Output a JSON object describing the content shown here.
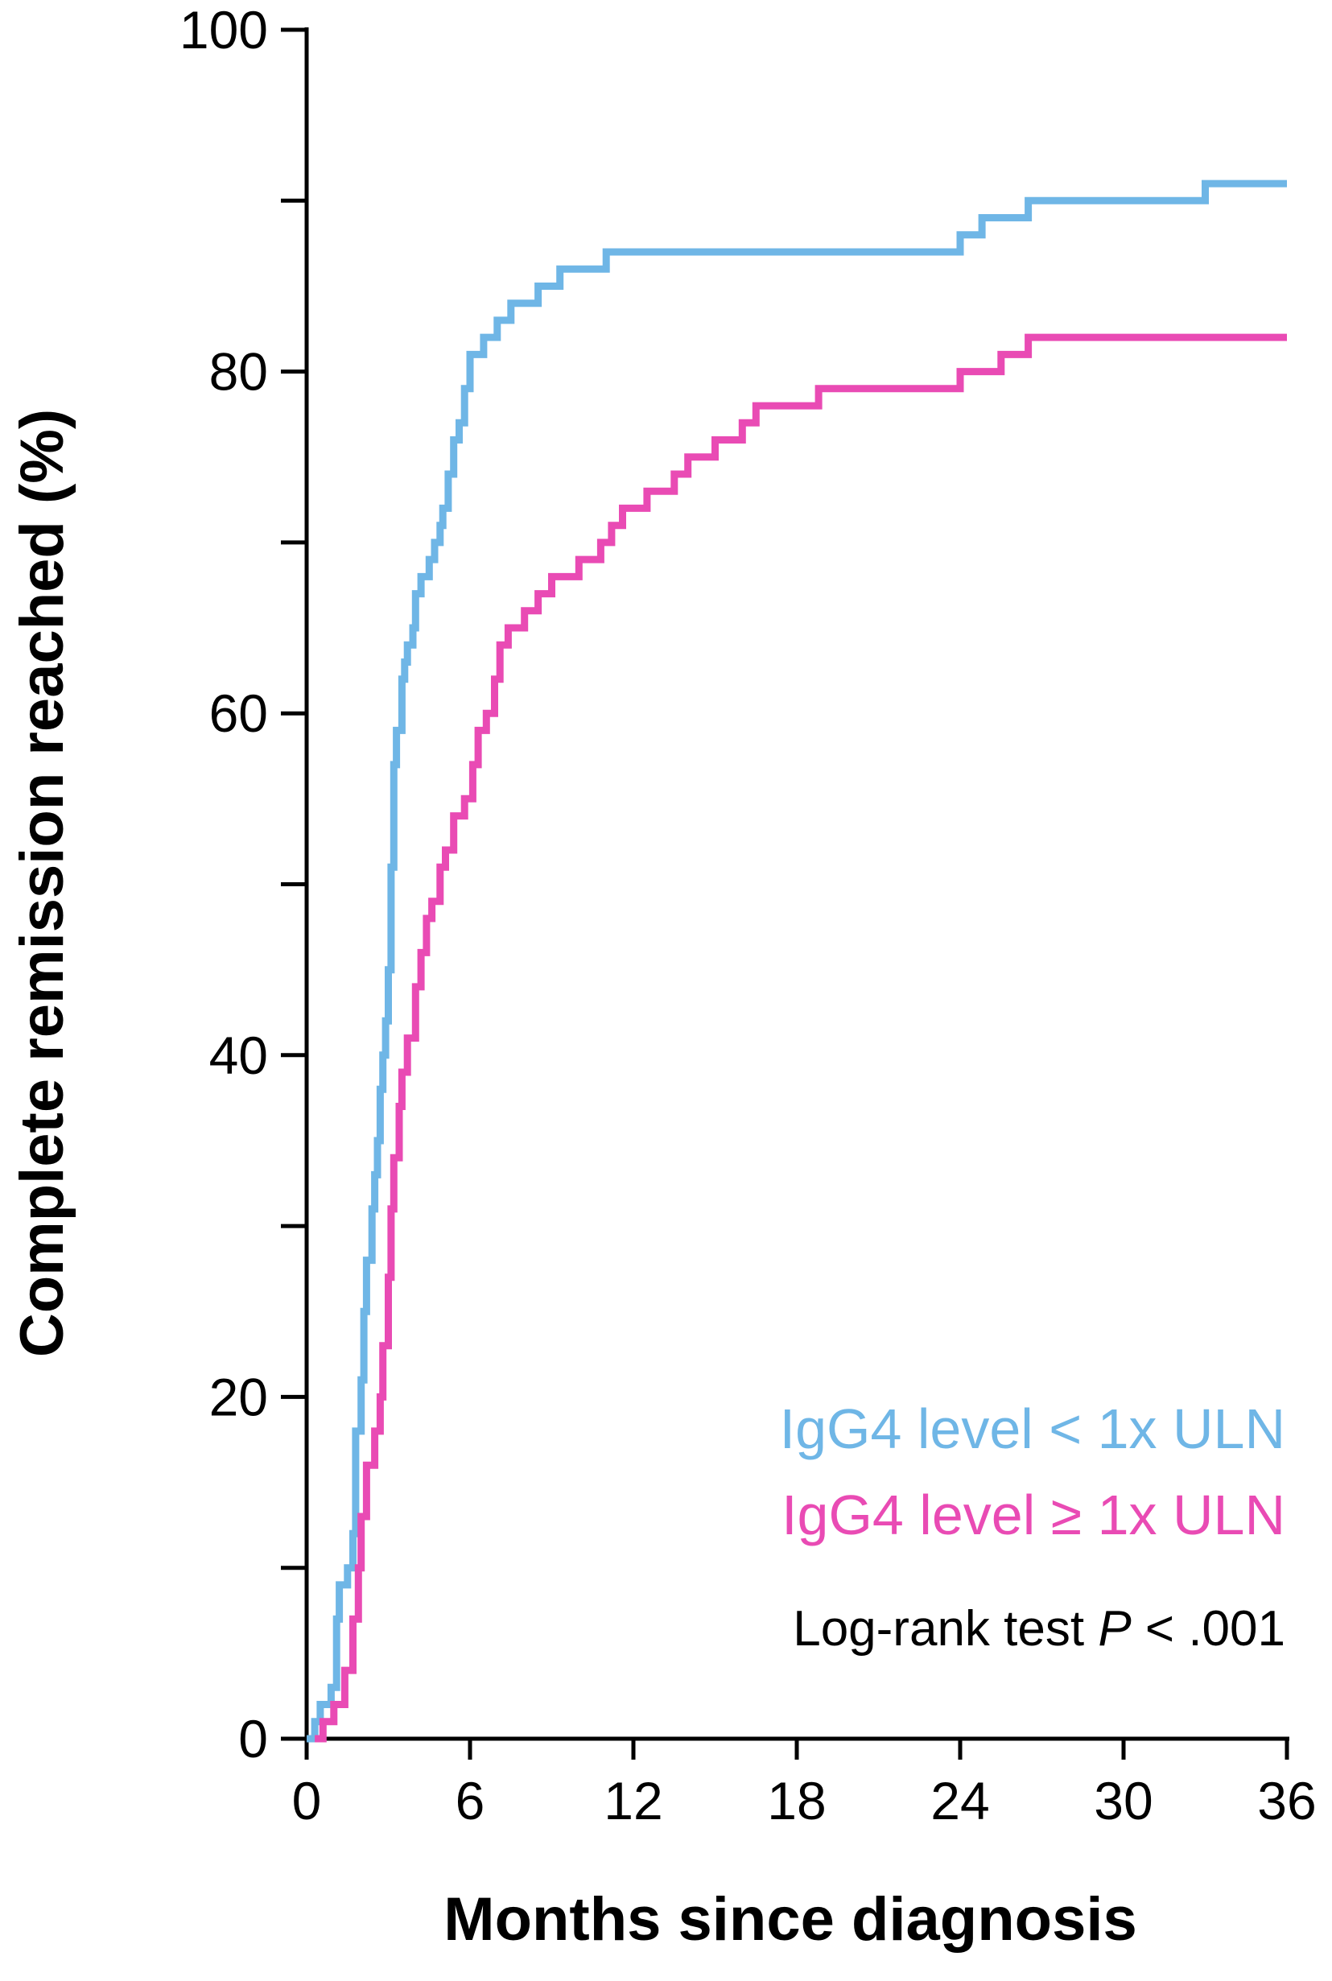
{
  "chart_data": {
    "type": "line",
    "step": true,
    "xlabel": "Months since diagnosis",
    "ylabel": "Complete remission reached (%)",
    "xlim": [
      0,
      36
    ],
    "ylim": [
      0,
      100
    ],
    "xticks": [
      0,
      6,
      12,
      18,
      24,
      30,
      36
    ],
    "yticks_labeled": [
      0,
      20,
      40,
      60,
      80,
      100
    ],
    "yticks_minor": [
      10,
      30,
      50,
      70,
      90
    ],
    "grid": false,
    "legend_placement": "bottom-right",
    "annotation": {
      "text_before": "Log-rank test ",
      "italic": "P",
      "text_after": " < .001"
    },
    "series": [
      {
        "name": "IgG4 level < 1x ULN",
        "color": "#6fb6e6",
        "points": [
          [
            0,
            0
          ],
          [
            0.3,
            1
          ],
          [
            0.5,
            2
          ],
          [
            0.9,
            3
          ],
          [
            1.1,
            7
          ],
          [
            1.2,
            9
          ],
          [
            1.5,
            10
          ],
          [
            1.7,
            12
          ],
          [
            1.8,
            18
          ],
          [
            2.0,
            21
          ],
          [
            2.1,
            25
          ],
          [
            2.2,
            28
          ],
          [
            2.4,
            31
          ],
          [
            2.5,
            33
          ],
          [
            2.6,
            35
          ],
          [
            2.7,
            38
          ],
          [
            2.8,
            40
          ],
          [
            2.9,
            42
          ],
          [
            3.0,
            45
          ],
          [
            3.1,
            51
          ],
          [
            3.2,
            57
          ],
          [
            3.3,
            59
          ],
          [
            3.5,
            62
          ],
          [
            3.6,
            63
          ],
          [
            3.7,
            64
          ],
          [
            3.9,
            65
          ],
          [
            4.0,
            67
          ],
          [
            4.2,
            68
          ],
          [
            4.5,
            69
          ],
          [
            4.7,
            70
          ],
          [
            4.9,
            71
          ],
          [
            5.0,
            72
          ],
          [
            5.2,
            74
          ],
          [
            5.4,
            76
          ],
          [
            5.6,
            77
          ],
          [
            5.8,
            79
          ],
          [
            6.0,
            81
          ],
          [
            6.5,
            82
          ],
          [
            7.0,
            83
          ],
          [
            7.5,
            84
          ],
          [
            8.5,
            85
          ],
          [
            9.3,
            86
          ],
          [
            11.0,
            87
          ],
          [
            24.0,
            88
          ],
          [
            24.8,
            89
          ],
          [
            26.5,
            90
          ],
          [
            33.0,
            91
          ],
          [
            36.0,
            91
          ]
        ]
      },
      {
        "name": "IgG4 level ≥ 1x ULN",
        "color": "#e94bb4",
        "points": [
          [
            0.3,
            0
          ],
          [
            0.6,
            1
          ],
          [
            1.0,
            2
          ],
          [
            1.4,
            4
          ],
          [
            1.7,
            7
          ],
          [
            1.9,
            10
          ],
          [
            2.0,
            13
          ],
          [
            2.2,
            16
          ],
          [
            2.5,
            18
          ],
          [
            2.7,
            20
          ],
          [
            2.8,
            23
          ],
          [
            3.0,
            27
          ],
          [
            3.1,
            31
          ],
          [
            3.2,
            34
          ],
          [
            3.4,
            37
          ],
          [
            3.5,
            39
          ],
          [
            3.7,
            41
          ],
          [
            4.0,
            44
          ],
          [
            4.2,
            46
          ],
          [
            4.4,
            48
          ],
          [
            4.6,
            49
          ],
          [
            4.9,
            51
          ],
          [
            5.1,
            52
          ],
          [
            5.4,
            54
          ],
          [
            5.8,
            55
          ],
          [
            6.1,
            57
          ],
          [
            6.3,
            59
          ],
          [
            6.6,
            60
          ],
          [
            6.9,
            62
          ],
          [
            7.1,
            64
          ],
          [
            7.4,
            65
          ],
          [
            8.0,
            66
          ],
          [
            8.5,
            67
          ],
          [
            9.0,
            68
          ],
          [
            10.0,
            69
          ],
          [
            10.8,
            70
          ],
          [
            11.2,
            71
          ],
          [
            11.6,
            72
          ],
          [
            12.5,
            73
          ],
          [
            13.5,
            74
          ],
          [
            14.0,
            75
          ],
          [
            15.0,
            76
          ],
          [
            16.0,
            77
          ],
          [
            16.5,
            78
          ],
          [
            18.8,
            79
          ],
          [
            24.0,
            80
          ],
          [
            25.5,
            81
          ],
          [
            26.5,
            82
          ],
          [
            28.5,
            82
          ],
          [
            36.0,
            82
          ]
        ]
      }
    ]
  }
}
